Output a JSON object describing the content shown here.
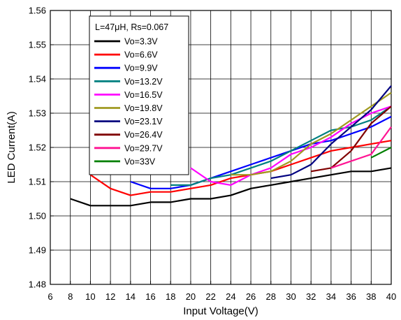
{
  "chart_data": {
    "type": "line",
    "title": "",
    "xlabel": "Input Voltage(V)",
    "ylabel": "LED Current(A)",
    "xlim": [
      6,
      40
    ],
    "ylim": [
      1.48,
      1.56
    ],
    "xticks": [
      6,
      8,
      10,
      12,
      14,
      16,
      18,
      20,
      22,
      24,
      26,
      28,
      30,
      32,
      34,
      36,
      38,
      40
    ],
    "yticks": [
      1.48,
      1.49,
      1.5,
      1.51,
      1.52,
      1.53,
      1.54,
      1.55,
      1.56
    ],
    "ytick_labels": [
      "1.48",
      "1.49",
      "1.50",
      "1.51",
      "1.52",
      "1.53",
      "1.54",
      "1.55",
      "1.56"
    ],
    "grid": true,
    "legend_position": "top-left",
    "legend_title": "L=47μH, Rs=0.067",
    "series": [
      {
        "name": "Vo=3.3V",
        "color": "#000000",
        "x": [
          8,
          10,
          12,
          14,
          16,
          18,
          20,
          22,
          24,
          26,
          28,
          30,
          32,
          34,
          36,
          38,
          40
        ],
        "y": [
          1.505,
          1.503,
          1.503,
          1.503,
          1.504,
          1.504,
          1.505,
          1.505,
          1.506,
          1.508,
          1.509,
          1.51,
          1.511,
          1.512,
          1.513,
          1.513,
          1.514
        ]
      },
      {
        "name": "Vo=6.6V",
        "color": "#ff0000",
        "x": [
          10,
          12,
          14,
          16,
          18,
          20,
          22,
          24,
          26,
          28,
          30,
          32,
          34,
          36,
          38,
          40
        ],
        "y": [
          1.512,
          1.508,
          1.506,
          1.507,
          1.507,
          1.508,
          1.509,
          1.511,
          1.512,
          1.513,
          1.515,
          1.517,
          1.519,
          1.52,
          1.521,
          1.522
        ]
      },
      {
        "name": "Vo=9.9V",
        "color": "#0000ff",
        "x": [
          14,
          16,
          18,
          20,
          22,
          24,
          26,
          28,
          30,
          32,
          34,
          36,
          38,
          40
        ],
        "y": [
          1.51,
          1.508,
          1.508,
          1.509,
          1.511,
          1.513,
          1.515,
          1.517,
          1.519,
          1.521,
          1.522,
          1.524,
          1.526,
          1.529
        ]
      },
      {
        "name": "Vo=13.2V",
        "color": "#008080",
        "x": [
          18,
          20,
          22,
          24,
          26,
          28,
          30,
          32,
          34,
          36,
          38,
          40
        ],
        "y": [
          1.509,
          1.509,
          1.511,
          1.512,
          1.514,
          1.516,
          1.519,
          1.522,
          1.525,
          1.526,
          1.528,
          1.532
        ]
      },
      {
        "name": "Vo=16.5V",
        "color": "#ff00ff",
        "x": [
          20,
          22,
          24,
          26,
          28,
          30,
          32,
          34,
          36,
          38,
          40
        ],
        "y": [
          1.514,
          1.51,
          1.509,
          1.512,
          1.514,
          1.518,
          1.52,
          1.523,
          1.527,
          1.53,
          1.532
        ]
      },
      {
        "name": "Vo=19.8V",
        "color": "#a09a20",
        "x": [
          24,
          26,
          28,
          30,
          32,
          34,
          36,
          38,
          40
        ],
        "y": [
          1.512,
          1.512,
          1.513,
          1.516,
          1.521,
          1.524,
          1.528,
          1.532,
          1.536
        ]
      },
      {
        "name": "Vo=23.1V",
        "color": "#000080",
        "x": [
          28,
          30,
          32,
          34,
          36,
          38,
          40
        ],
        "y": [
          1.511,
          1.512,
          1.515,
          1.521,
          1.526,
          1.531,
          1.538
        ]
      },
      {
        "name": "Vo=26.4V",
        "color": "#800000",
        "x": [
          32,
          34,
          36,
          38,
          40
        ],
        "y": [
          1.513,
          1.514,
          1.519,
          1.527,
          1.532
        ]
      },
      {
        "name": "Vo=29.7V",
        "color": "#ff1493",
        "x": [
          34,
          36,
          38,
          40
        ],
        "y": [
          1.514,
          1.516,
          1.518,
          1.526
        ]
      },
      {
        "name": "Vo=33V",
        "color": "#008000",
        "x": [
          38,
          40
        ],
        "y": [
          1.517,
          1.52
        ]
      }
    ]
  }
}
